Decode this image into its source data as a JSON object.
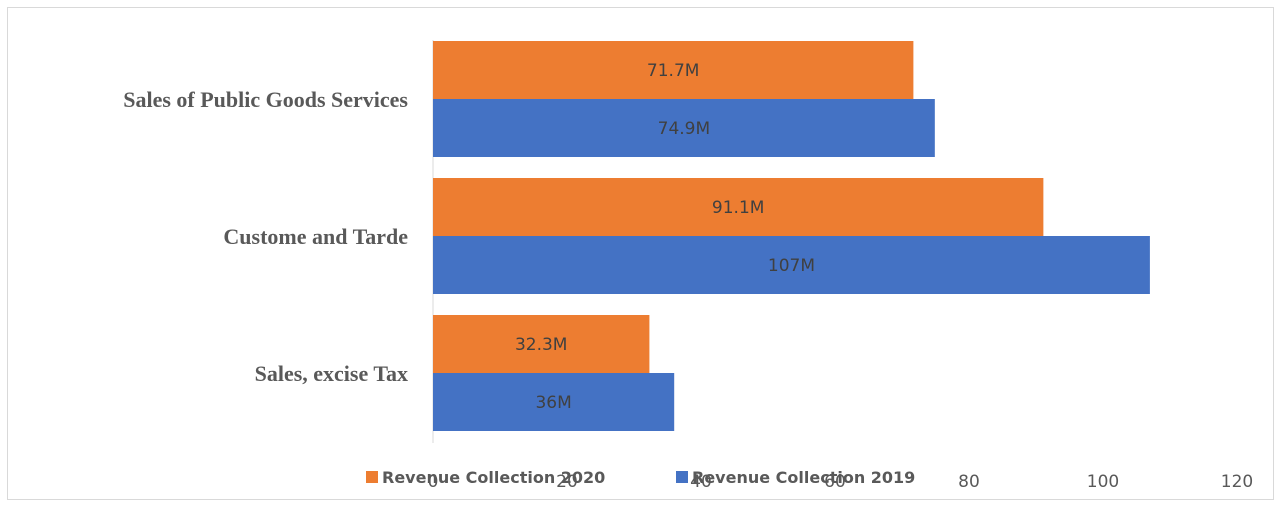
{
  "chart_data": {
    "type": "bar",
    "orientation": "horizontal",
    "categories": [
      "Sales of Public Goods  Services",
      "Custome and Tarde",
      "Sales, excise Tax"
    ],
    "series": [
      {
        "name": "Revenue Collection 2020",
        "color": "#ed7d31",
        "values": [
          71.7,
          91.1,
          32.3
        ],
        "labels": [
          "71.7M",
          "91.1M",
          "32.3M"
        ]
      },
      {
        "name": "Revenue Collection 2019",
        "color": "#4472c4",
        "values": [
          74.9,
          107,
          36
        ],
        "labels": [
          "74.9M",
          "107M",
          "36M"
        ]
      }
    ],
    "xlim": [
      0,
      120
    ],
    "xticks": [
      "0",
      "20",
      "40",
      "60",
      "80",
      "100",
      "120"
    ],
    "grid": false,
    "legend_position": "bottom",
    "title": "",
    "xlabel": "",
    "ylabel": ""
  }
}
